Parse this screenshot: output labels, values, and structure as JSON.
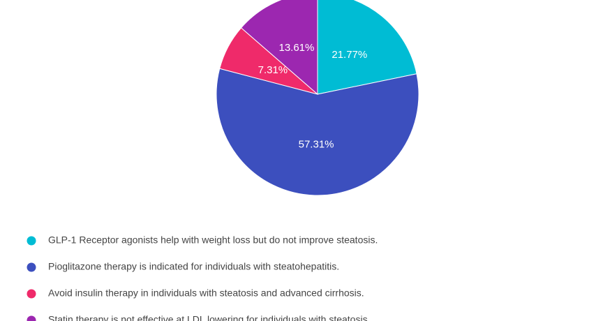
{
  "chart_data": {
    "type": "pie",
    "categories": [
      "GLP-1 Receptor agonists help with weight loss but do not improve steatosis.",
      "Pioglitazone therapy is indicated for individuals with steatohepatitis.",
      "Avoid insulin therapy in individuals with steatosis and advanced cirrhosis.",
      "Statin therapy is not effective at LDL lowering for individuals with steatosis."
    ],
    "values": [
      21.77,
      57.31,
      7.31,
      13.61
    ],
    "value_labels": [
      "21.77%",
      "57.31%",
      "7.31%",
      "13.61%"
    ],
    "colors": [
      "#00bcd4",
      "#3c4fbe",
      "#ef2a6a",
      "#9c27b0"
    ]
  }
}
